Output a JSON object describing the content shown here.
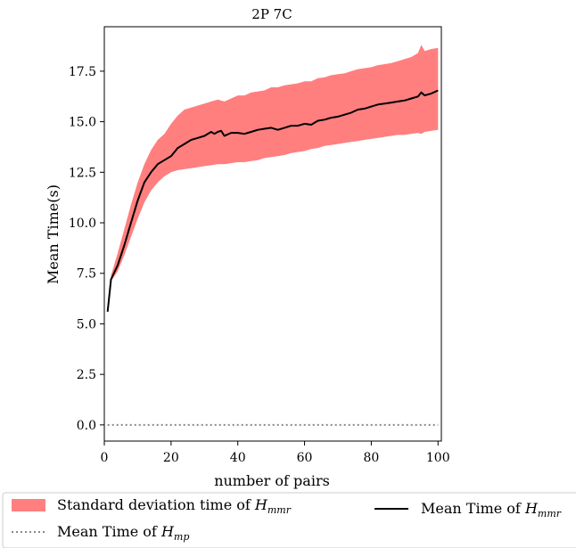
{
  "chart_data": {
    "type": "line",
    "title": "2P 7C",
    "xlabel": "number of pairs",
    "ylabel": "Mean Time(s)",
    "xlim": [
      0,
      101
    ],
    "ylim": [
      -0.8,
      19.7
    ],
    "xticks": [
      0,
      20,
      40,
      60,
      80,
      100
    ],
    "xtick_labels": [
      "0",
      "20",
      "40",
      "60",
      "80",
      "100"
    ],
    "yticks": [
      0.0,
      2.5,
      5.0,
      7.5,
      10.0,
      12.5,
      15.0,
      17.5
    ],
    "ytick_labels": [
      "0.0",
      "2.5",
      "5.0",
      "7.5",
      "10.0",
      "12.5",
      "15.0",
      "17.5"
    ],
    "grid": false,
    "legend_placement": "below",
    "series": [
      {
        "name": "Mean Time of H_mmr",
        "legend_main": "Mean Time of ",
        "legend_symbol": "H",
        "legend_sub": "mmr",
        "style": "line",
        "color": "#000000",
        "x": [
          1,
          2,
          4,
          6,
          8,
          10,
          12,
          14,
          16,
          18,
          20,
          22,
          24,
          26,
          28,
          30,
          32,
          33,
          34,
          35,
          36,
          38,
          40,
          42,
          44,
          46,
          48,
          50,
          52,
          54,
          56,
          58,
          60,
          62,
          64,
          66,
          68,
          70,
          72,
          74,
          76,
          78,
          80,
          82,
          84,
          86,
          88,
          90,
          92,
          94,
          95,
          96,
          98,
          100
        ],
        "y": [
          5.6,
          7.2,
          7.9,
          8.9,
          10.0,
          11.1,
          12.0,
          12.5,
          12.9,
          13.1,
          13.3,
          13.7,
          13.9,
          14.1,
          14.2,
          14.3,
          14.5,
          14.4,
          14.5,
          14.55,
          14.3,
          14.45,
          14.45,
          14.4,
          14.5,
          14.6,
          14.65,
          14.7,
          14.6,
          14.7,
          14.8,
          14.8,
          14.9,
          14.85,
          15.05,
          15.1,
          15.2,
          15.25,
          15.35,
          15.45,
          15.6,
          15.65,
          15.75,
          15.85,
          15.9,
          15.95,
          16.0,
          16.05,
          16.15,
          16.25,
          16.45,
          16.3,
          16.4,
          16.55
        ]
      },
      {
        "name": "Standard deviation time of H_mmr",
        "legend_main": "Standard deviation time of ",
        "legend_symbol": "H",
        "legend_sub": "mmr",
        "style": "band",
        "color": "#ff7f7f",
        "x": [
          2,
          4,
          6,
          8,
          10,
          12,
          14,
          16,
          18,
          20,
          22,
          24,
          26,
          28,
          30,
          32,
          34,
          36,
          38,
          40,
          42,
          44,
          46,
          48,
          50,
          52,
          54,
          56,
          58,
          60,
          62,
          64,
          66,
          68,
          70,
          72,
          74,
          76,
          78,
          80,
          82,
          84,
          86,
          88,
          90,
          92,
          94,
          95,
          96,
          98,
          100
        ],
        "upper": [
          7.4,
          8.5,
          9.7,
          10.9,
          12.0,
          12.9,
          13.6,
          14.1,
          14.4,
          14.9,
          15.3,
          15.6,
          15.7,
          15.8,
          15.9,
          16.0,
          16.1,
          16.0,
          16.15,
          16.3,
          16.3,
          16.45,
          16.5,
          16.55,
          16.7,
          16.7,
          16.8,
          16.85,
          16.9,
          17.0,
          17.0,
          17.15,
          17.2,
          17.3,
          17.35,
          17.4,
          17.5,
          17.6,
          17.65,
          17.7,
          17.8,
          17.85,
          17.9,
          18.0,
          18.1,
          18.2,
          18.4,
          18.8,
          18.5,
          18.6,
          18.65
        ],
        "lower": [
          7.1,
          7.6,
          8.4,
          9.3,
          10.2,
          11.0,
          11.6,
          12.0,
          12.3,
          12.5,
          12.6,
          12.65,
          12.7,
          12.75,
          12.8,
          12.85,
          12.9,
          12.9,
          12.95,
          13.0,
          13.0,
          13.05,
          13.1,
          13.2,
          13.25,
          13.3,
          13.35,
          13.45,
          13.5,
          13.55,
          13.65,
          13.7,
          13.8,
          13.85,
          13.9,
          13.95,
          14.0,
          14.05,
          14.1,
          14.15,
          14.2,
          14.25,
          14.3,
          14.35,
          14.35,
          14.4,
          14.45,
          14.4,
          14.5,
          14.55,
          14.6
        ]
      },
      {
        "name": "Mean Time of H_mp",
        "legend_main": "Mean Time of ",
        "legend_symbol": "H",
        "legend_sub": "mp",
        "style": "dotted",
        "color": "#888888",
        "x": [
          1,
          100
        ],
        "y": [
          0,
          0
        ]
      }
    ]
  }
}
